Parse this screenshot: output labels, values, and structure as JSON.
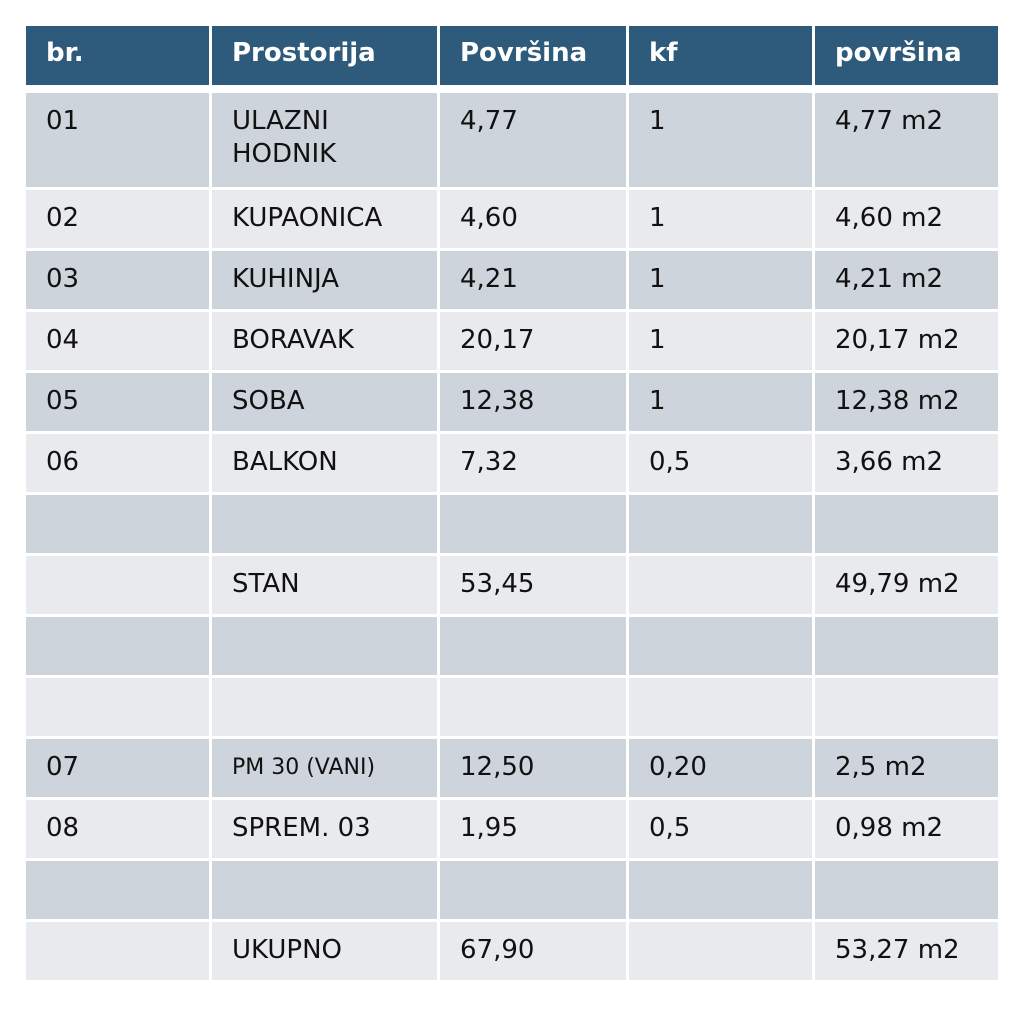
{
  "table": {
    "headers": [
      "br.",
      "Prostorija",
      "Površina",
      "kf",
      "površina"
    ],
    "rows": [
      [
        "01",
        "ULAZNI\nHODNIK",
        "4,77",
        "1",
        "4,77 m2"
      ],
      [
        "02",
        "KUPAONICA",
        "4,60",
        "1",
        "4,60 m2"
      ],
      [
        "03",
        "KUHINJA",
        "4,21",
        "1",
        "4,21 m2"
      ],
      [
        "04",
        "BORAVAK",
        "20,17",
        "1",
        "20,17 m2"
      ],
      [
        "05",
        "SOBA",
        "12,38",
        "1",
        "12,38 m2"
      ],
      [
        "06",
        "BALKON",
        "7,32",
        "0,5",
        "3,66 m2"
      ],
      [
        "",
        "",
        "",
        "",
        ""
      ],
      [
        "",
        "STAN",
        "53,45",
        "",
        "49,79 m2"
      ],
      [
        "",
        "",
        "",
        "",
        ""
      ],
      [
        "",
        "",
        "",
        "",
        ""
      ],
      [
        "07",
        "PM 30 (VANI)",
        "12,50",
        "0,20",
        "2,5 m2"
      ],
      [
        "08",
        "SPREM. 03",
        "1,95",
        "0,5",
        "0,98 m2"
      ],
      [
        "",
        "",
        "",
        "",
        ""
      ],
      [
        "",
        "UKUPNO",
        "67,90",
        "",
        "53,27 m2"
      ]
    ]
  },
  "colors": {
    "header_bg": "#2e5a7b",
    "header_text": "#ffffff",
    "row_dark": "#ced4dc",
    "row_light": "#e8eaee"
  }
}
